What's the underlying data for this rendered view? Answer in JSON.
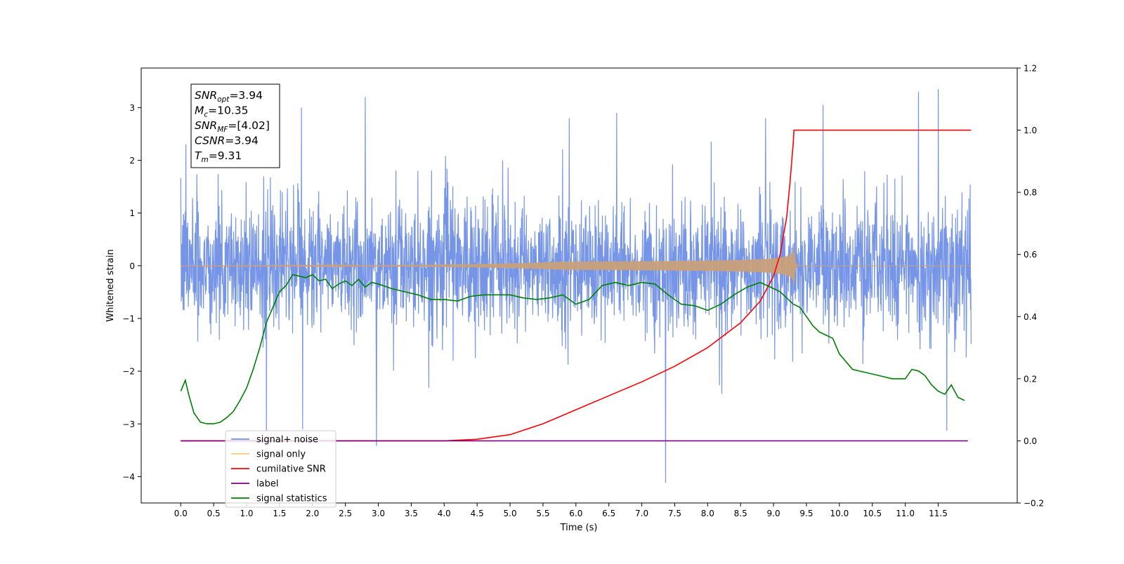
{
  "chart_data": {
    "type": "line",
    "xlabel": "Time (s)",
    "ylabel": "Whitened strain",
    "xlim": [
      -0.6,
      12.7
    ],
    "ylim": [
      -4.5,
      3.75
    ],
    "y2lim": [
      -0.2,
      1.2
    ],
    "x_ticks": [
      0.0,
      0.5,
      1.0,
      1.5,
      2.0,
      2.5,
      3.0,
      3.5,
      4.0,
      4.5,
      5.0,
      5.5,
      6.0,
      6.5,
      7.0,
      7.5,
      8.0,
      8.5,
      9.0,
      9.5,
      10.0,
      10.5,
      11.0,
      11.5
    ],
    "x_tick_labels": [
      "0.0",
      "0.5",
      "1.0",
      "1.5",
      "2.0",
      "2.5",
      "3.0",
      "3.5",
      "4.0",
      "4.5",
      "5.0",
      "5.5",
      "6.0",
      "6.5",
      "7.0",
      "7.5",
      "8.0",
      "8.5",
      "9.0",
      "9.5",
      "10.0",
      "10.5",
      "11.0",
      "11.5"
    ],
    "y_ticks": [
      3,
      2,
      1,
      0,
      -1,
      -2,
      -3,
      -4
    ],
    "y_tick_labels": [
      "3",
      "2",
      "1",
      "0",
      "−1",
      "−2",
      "−3",
      "−4"
    ],
    "y2_ticks": [
      1.2,
      1.0,
      0.8,
      0.6,
      0.4,
      0.2,
      0.0,
      -0.2
    ],
    "y2_tick_labels": [
      "1.2",
      "1.0",
      "0.8",
      "0.6",
      "0.4",
      "0.2",
      "0.0",
      "−0.2"
    ],
    "legend_position": "bottom-left",
    "legend": [
      "signal+ noise",
      "signal only",
      "cumilative SNR",
      "label",
      "signal statistics"
    ],
    "annotation_box": {
      "position": "top-left",
      "lines": [
        {
          "sym": "SNR",
          "sub": "opt",
          "value": "=3.94"
        },
        {
          "sym": "M",
          "sub": "c",
          "value": "=10.35"
        },
        {
          "sym": "SNR",
          "sub": "MF",
          "value": "=[4.02]"
        },
        {
          "sym": "CSNR",
          "sub": "",
          "value": "=3.94"
        },
        {
          "sym": "T",
          "sub": "m",
          "value": "=9.31"
        }
      ]
    },
    "series": [
      {
        "name": "signal+ noise",
        "color": "#6f8fe6",
        "axis": "left",
        "style": "dense-noise",
        "x_range": [
          0.0,
          12.0
        ],
        "typical_range": [
          -1.5,
          1.2
        ],
        "spikes": [
          {
            "x": 2.97,
            "y": -3.42
          },
          {
            "x": 7.36,
            "y": -4.12
          },
          {
            "x": 1.3,
            "y": -3.15
          },
          {
            "x": 1.85,
            "y": -3.1
          },
          {
            "x": 11.63,
            "y": -3.13
          },
          {
            "x": 2.8,
            "y": 3.2
          },
          {
            "x": 1.83,
            "y": 3.0
          },
          {
            "x": 11.5,
            "y": 3.35
          },
          {
            "x": 11.2,
            "y": 3.3
          },
          {
            "x": 8.88,
            "y": 2.8
          },
          {
            "x": 9.75,
            "y": 3.05
          },
          {
            "x": 6.62,
            "y": 2.9
          },
          {
            "x": 5.9,
            "y": 2.8
          },
          {
            "x": 0.08,
            "y": 2.3
          }
        ]
      },
      {
        "name": "signal only",
        "color": "#c9a07a",
        "axis": "left",
        "style": "chirp",
        "x_range": [
          0.0,
          12.0
        ],
        "merger_time": 9.31,
        "peak_amplitude": 0.42
      },
      {
        "name": "cumilative SNR",
        "color": "#ff0000",
        "axis": "right",
        "x": [
          0.0,
          4.0,
          4.5,
          5.0,
          5.5,
          6.0,
          6.5,
          7.0,
          7.5,
          8.0,
          8.5,
          8.8,
          9.0,
          9.1,
          9.2,
          9.25,
          9.3,
          9.31,
          12.0
        ],
        "y": [
          0.0,
          0.0,
          0.005,
          0.02,
          0.055,
          0.1,
          0.145,
          0.19,
          0.24,
          0.3,
          0.38,
          0.45,
          0.53,
          0.6,
          0.72,
          0.83,
          0.96,
          1.0,
          1.0
        ]
      },
      {
        "name": "label",
        "color": "#800080",
        "axis": "right",
        "x": [
          0.0,
          11.95
        ],
        "y": [
          0.0,
          0.0
        ]
      },
      {
        "name": "signal statistics",
        "color": "#008000",
        "axis": "right",
        "x": [
          0.0,
          0.07,
          0.12,
          0.2,
          0.3,
          0.4,
          0.5,
          0.6,
          0.7,
          0.8,
          0.9,
          1.0,
          1.1,
          1.2,
          1.3,
          1.4,
          1.5,
          1.6,
          1.7,
          1.8,
          1.9,
          2.0,
          2.1,
          2.2,
          2.3,
          2.4,
          2.5,
          2.6,
          2.7,
          2.8,
          2.9,
          3.0,
          3.2,
          3.4,
          3.6,
          3.8,
          4.0,
          4.2,
          4.4,
          4.6,
          4.8,
          5.0,
          5.2,
          5.4,
          5.6,
          5.8,
          6.0,
          6.2,
          6.4,
          6.6,
          6.8,
          7.0,
          7.2,
          7.4,
          7.6,
          7.8,
          8.0,
          8.2,
          8.4,
          8.6,
          8.8,
          8.9,
          9.0,
          9.1,
          9.2,
          9.3,
          9.4,
          9.5,
          9.6,
          9.7,
          9.8,
          9.9,
          10.0,
          10.2,
          10.4,
          10.6,
          10.8,
          11.0,
          11.1,
          11.2,
          11.3,
          11.4,
          11.5,
          11.6,
          11.7,
          11.8,
          11.9
        ],
        "y": [
          0.16,
          0.195,
          0.15,
          0.09,
          0.06,
          0.055,
          0.055,
          0.06,
          0.075,
          0.095,
          0.13,
          0.17,
          0.23,
          0.3,
          0.38,
          0.43,
          0.48,
          0.5,
          0.535,
          0.53,
          0.525,
          0.535,
          0.515,
          0.52,
          0.49,
          0.505,
          0.515,
          0.5,
          0.52,
          0.495,
          0.51,
          0.505,
          0.49,
          0.48,
          0.47,
          0.455,
          0.455,
          0.45,
          0.465,
          0.47,
          0.47,
          0.47,
          0.46,
          0.455,
          0.46,
          0.47,
          0.44,
          0.455,
          0.5,
          0.51,
          0.5,
          0.51,
          0.505,
          0.47,
          0.44,
          0.435,
          0.42,
          0.44,
          0.47,
          0.495,
          0.51,
          0.5,
          0.49,
          0.48,
          0.46,
          0.44,
          0.43,
          0.4,
          0.37,
          0.35,
          0.34,
          0.33,
          0.28,
          0.23,
          0.22,
          0.21,
          0.2,
          0.2,
          0.23,
          0.225,
          0.21,
          0.18,
          0.16,
          0.15,
          0.18,
          0.14,
          0.13
        ]
      }
    ]
  }
}
